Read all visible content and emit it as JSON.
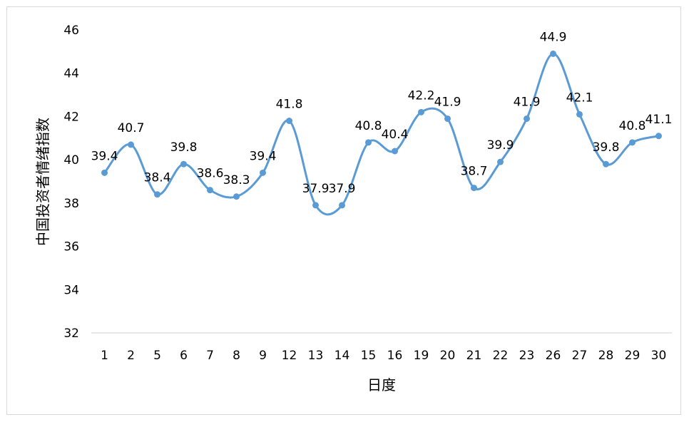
{
  "chart_data": {
    "type": "line",
    "smooth": true,
    "title": "",
    "xlabel": "日度",
    "ylabel": "中国投资者情绪指数",
    "categories": [
      "1",
      "2",
      "5",
      "6",
      "7",
      "8",
      "9",
      "12",
      "13",
      "14",
      "15",
      "16",
      "19",
      "20",
      "21",
      "22",
      "23",
      "26",
      "27",
      "28",
      "29",
      "30"
    ],
    "series": [
      {
        "values": [
          39.4,
          40.7,
          38.4,
          39.8,
          38.6,
          38.3,
          39.4,
          41.8,
          37.9,
          37.9,
          40.8,
          40.4,
          42.2,
          41.9,
          38.7,
          39.9,
          41.9,
          44.9,
          42.1,
          39.8,
          40.8,
          41.1
        ],
        "color": "#5b9bd5"
      }
    ],
    "ylim": [
      32,
      46
    ],
    "yticks": [
      32,
      34,
      36,
      38,
      40,
      42,
      44,
      46
    ],
    "grid": false,
    "legend": "none",
    "data_labels": true
  }
}
